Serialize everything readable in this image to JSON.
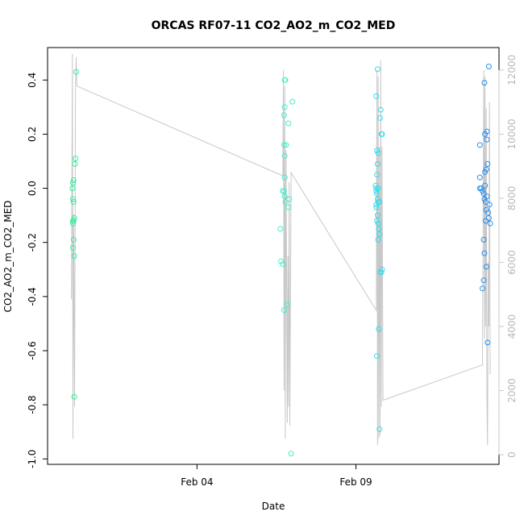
{
  "chart_data": {
    "type": "scatter",
    "title": "ORCAS RF07-11 CO2_AO2_m_CO2_MED",
    "xlabel": "Date",
    "ylabel": "CO2_AO2_m_CO2_MED",
    "x_range_days": [
      -0.7,
      13.5
    ],
    "x_ticks": [
      {
        "label": "Feb 04",
        "day": 4
      },
      {
        "label": "Feb 09",
        "day": 9
      }
    ],
    "ylim": [
      -1.02,
      0.52
    ],
    "y_ticks": [
      -1.0,
      -0.8,
      -0.6,
      -0.4,
      -0.2,
      0.0,
      0.2,
      0.4
    ],
    "y_tick_labels": [
      "-1.0",
      "-0.8",
      "-0.6",
      "-0.4",
      "-0.2",
      "0.0",
      "0.2",
      "0.4"
    ],
    "y2_range": [
      -300,
      12700
    ],
    "y2_ticks": [
      0,
      2000,
      4000,
      6000,
      8000,
      10000,
      12000
    ],
    "y2_tick_labels": [
      "0",
      "2000",
      "4000",
      "6000",
      "8000",
      "10000",
      "12000"
    ],
    "y2_color": "#c8c8c8",
    "series": [
      {
        "color": "#33ee99",
        "points": [
          [
            0.2,
            0.43
          ],
          [
            0.18,
            0.11
          ],
          [
            0.16,
            0.09
          ],
          [
            0.12,
            0.03
          ],
          [
            0.1,
            0.02
          ],
          [
            0.08,
            0.0
          ],
          [
            0.1,
            -0.04
          ],
          [
            0.12,
            -0.05
          ],
          [
            0.14,
            -0.11
          ],
          [
            0.12,
            -0.12
          ],
          [
            0.1,
            -0.12
          ],
          [
            0.1,
            -0.13
          ],
          [
            0.12,
            -0.19
          ],
          [
            0.1,
            -0.22
          ],
          [
            0.14,
            -0.25
          ],
          [
            0.14,
            -0.77
          ]
        ]
      },
      {
        "color": "#44eecc",
        "points": [
          [
            6.78,
            0.4
          ],
          [
            6.76,
            0.4
          ],
          [
            7.0,
            0.32
          ],
          [
            6.76,
            0.3
          ],
          [
            6.74,
            0.27
          ],
          [
            6.88,
            0.24
          ],
          [
            6.74,
            0.16
          ],
          [
            6.8,
            0.16
          ],
          [
            6.76,
            0.12
          ],
          [
            6.76,
            0.04
          ],
          [
            6.7,
            -0.01
          ],
          [
            6.74,
            -0.01
          ],
          [
            6.76,
            -0.03
          ],
          [
            6.9,
            -0.04
          ],
          [
            6.78,
            -0.05
          ],
          [
            6.88,
            -0.07
          ],
          [
            6.62,
            -0.15
          ],
          [
            6.64,
            -0.27
          ],
          [
            6.7,
            -0.28
          ],
          [
            6.84,
            -0.43
          ],
          [
            6.74,
            -0.45
          ],
          [
            6.96,
            -0.98
          ]
        ]
      },
      {
        "color": "#33ddee",
        "points": [
          [
            9.68,
            0.44
          ],
          [
            9.64,
            0.34
          ],
          [
            9.78,
            0.29
          ],
          [
            9.76,
            0.26
          ],
          [
            9.8,
            0.2
          ],
          [
            9.82,
            0.2
          ],
          [
            9.66,
            0.14
          ],
          [
            9.7,
            0.13
          ],
          [
            9.68,
            0.09
          ],
          [
            9.66,
            0.05
          ],
          [
            9.62,
            0.01
          ],
          [
            9.64,
            0.0
          ],
          [
            9.7,
            0.0
          ],
          [
            9.64,
            -0.01
          ],
          [
            9.66,
            -0.02
          ],
          [
            9.68,
            -0.04
          ],
          [
            9.74,
            -0.05
          ],
          [
            9.7,
            -0.05
          ],
          [
            9.64,
            -0.06
          ],
          [
            9.64,
            -0.07
          ],
          [
            9.68,
            -0.1
          ],
          [
            9.66,
            -0.12
          ],
          [
            9.7,
            -0.13
          ],
          [
            9.72,
            -0.15
          ],
          [
            9.74,
            -0.17
          ],
          [
            9.7,
            -0.19
          ],
          [
            9.82,
            -0.3
          ],
          [
            9.8,
            -0.31
          ],
          [
            9.76,
            -0.31
          ],
          [
            9.72,
            -0.52
          ],
          [
            9.66,
            -0.62
          ],
          [
            9.74,
            -0.89
          ]
        ]
      },
      {
        "color": "#2a8fee",
        "points": [
          [
            13.18,
            0.45
          ],
          [
            13.04,
            0.39
          ],
          [
            13.12,
            0.21
          ],
          [
            13.06,
            0.2
          ],
          [
            13.12,
            0.18
          ],
          [
            12.9,
            0.16
          ],
          [
            13.14,
            0.09
          ],
          [
            13.1,
            0.07
          ],
          [
            13.06,
            0.06
          ],
          [
            12.9,
            0.04
          ],
          [
            13.06,
            0.01
          ],
          [
            12.9,
            0.0
          ],
          [
            12.94,
            0.0
          ],
          [
            12.98,
            -0.01
          ],
          [
            13.02,
            -0.02
          ],
          [
            13.12,
            -0.03
          ],
          [
            13.04,
            -0.04
          ],
          [
            13.08,
            -0.05
          ],
          [
            13.2,
            -0.06
          ],
          [
            13.1,
            -0.08
          ],
          [
            13.16,
            -0.09
          ],
          [
            13.18,
            -0.11
          ],
          [
            13.08,
            -0.12
          ],
          [
            13.22,
            -0.13
          ],
          [
            13.02,
            -0.19
          ],
          [
            13.04,
            -0.24
          ],
          [
            13.1,
            -0.29
          ],
          [
            13.02,
            -0.34
          ],
          [
            12.98,
            -0.37
          ],
          [
            13.14,
            -0.57
          ]
        ]
      }
    ],
    "altitude_line": {
      "color": "#c8c8c8",
      "points": [
        [
          0.05,
          4850
        ],
        [
          0.08,
          12500
        ],
        [
          0.1,
          500
        ],
        [
          0.12,
          7500
        ],
        [
          0.15,
          1500
        ],
        [
          0.18,
          11500
        ],
        [
          0.2,
          12400
        ],
        [
          0.22,
          11500
        ],
        [
          6.7,
          8700
        ],
        [
          6.72,
          12000
        ],
        [
          6.74,
          2000
        ],
        [
          6.76,
          11500
        ],
        [
          6.78,
          500
        ],
        [
          6.8,
          9500
        ],
        [
          6.84,
          1000
        ],
        [
          6.86,
          6200
        ],
        [
          6.88,
          1500
        ],
        [
          6.9,
          8500
        ],
        [
          6.92,
          900
        ],
        [
          6.96,
          8800
        ],
        [
          9.64,
          4500
        ],
        [
          9.66,
          12000
        ],
        [
          9.68,
          300
        ],
        [
          9.7,
          11800
        ],
        [
          9.72,
          500
        ],
        [
          9.74,
          9600
        ],
        [
          9.76,
          600
        ],
        [
          9.78,
          12300
        ],
        [
          9.8,
          1500
        ],
        [
          9.82,
          9600
        ],
        [
          9.85,
          1700
        ],
        [
          12.98,
          2800
        ],
        [
          13.02,
          12000
        ],
        [
          13.04,
          3600
        ],
        [
          13.06,
          11800
        ],
        [
          13.08,
          4000
        ],
        [
          13.1,
          10800
        ],
        [
          13.12,
          1700
        ],
        [
          13.14,
          300
        ],
        [
          13.16,
          6000
        ],
        [
          13.18,
          4000
        ],
        [
          13.2,
          11000
        ],
        [
          13.22,
          2500
        ]
      ]
    }
  }
}
